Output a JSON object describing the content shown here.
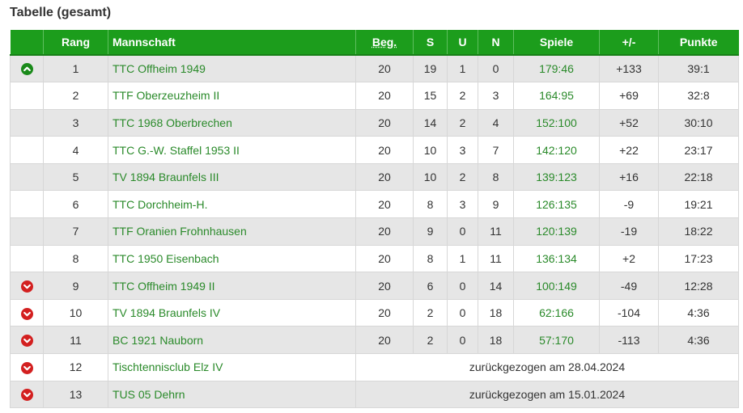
{
  "title": "Tabelle (gesamt)",
  "colors": {
    "header_bg": "#1c9d1c",
    "link": "#2a8a2a",
    "up": "#1a8a1a",
    "down": "#d32020",
    "row_alt": "#e6e6e6"
  },
  "columns": {
    "tendency": "",
    "rank": "Rang",
    "team": "Mannschaft",
    "played": "Beg.",
    "won": "S",
    "draw": "U",
    "lost": "N",
    "games": "Spiele",
    "diff": "+/-",
    "points": "Punkte"
  },
  "rows": [
    {
      "tendency": "up-icon",
      "rank": "1",
      "team": "TTC Offheim 1949",
      "played": "20",
      "won": "19",
      "draw": "1",
      "lost": "0",
      "games": "179:46",
      "diff": "+133",
      "points": "39:1"
    },
    {
      "tendency": "",
      "rank": "2",
      "team": "TTF Oberzeuzheim II",
      "played": "20",
      "won": "15",
      "draw": "2",
      "lost": "3",
      "games": "164:95",
      "diff": "+69",
      "points": "32:8"
    },
    {
      "tendency": "",
      "rank": "3",
      "team": "TTC 1968 Oberbrechen",
      "played": "20",
      "won": "14",
      "draw": "2",
      "lost": "4",
      "games": "152:100",
      "diff": "+52",
      "points": "30:10"
    },
    {
      "tendency": "",
      "rank": "4",
      "team": "TTC G.-W. Staffel 1953 II",
      "played": "20",
      "won": "10",
      "draw": "3",
      "lost": "7",
      "games": "142:120",
      "diff": "+22",
      "points": "23:17"
    },
    {
      "tendency": "",
      "rank": "5",
      "team": "TV 1894 Braunfels III",
      "played": "20",
      "won": "10",
      "draw": "2",
      "lost": "8",
      "games": "139:123",
      "diff": "+16",
      "points": "22:18"
    },
    {
      "tendency": "",
      "rank": "6",
      "team": "TTC Dorchheim-H.",
      "played": "20",
      "won": "8",
      "draw": "3",
      "lost": "9",
      "games": "126:135",
      "diff": "-9",
      "points": "19:21"
    },
    {
      "tendency": "",
      "rank": "7",
      "team": "TTF Oranien Frohnhausen",
      "played": "20",
      "won": "9",
      "draw": "0",
      "lost": "11",
      "games": "120:139",
      "diff": "-19",
      "points": "18:22"
    },
    {
      "tendency": "",
      "rank": "8",
      "team": "TTC 1950 Eisenbach",
      "played": "20",
      "won": "8",
      "draw": "1",
      "lost": "11",
      "games": "136:134",
      "diff": "+2",
      "points": "17:23"
    },
    {
      "tendency": "down-icon",
      "rank": "9",
      "team": "TTC Offheim 1949 II",
      "played": "20",
      "won": "6",
      "draw": "0",
      "lost": "14",
      "games": "100:149",
      "diff": "-49",
      "points": "12:28"
    },
    {
      "tendency": "down-icon",
      "rank": "10",
      "team": "TV 1894 Braunfels IV",
      "played": "20",
      "won": "2",
      "draw": "0",
      "lost": "18",
      "games": "62:166",
      "diff": "-104",
      "points": "4:36"
    },
    {
      "tendency": "down-icon",
      "rank": "11",
      "team": "BC 1921 Nauborn",
      "played": "20",
      "won": "2",
      "draw": "0",
      "lost": "18",
      "games": "57:170",
      "diff": "-113",
      "points": "4:36"
    },
    {
      "tendency": "down-icon",
      "rank": "12",
      "team": "Tischtennisclub Elz IV",
      "withdrawn": "zurückgezogen am 28.04.2024"
    },
    {
      "tendency": "down-icon",
      "rank": "13",
      "team": "TUS 05 Dehrn",
      "withdrawn": "zurückgezogen am 15.01.2024"
    }
  ]
}
